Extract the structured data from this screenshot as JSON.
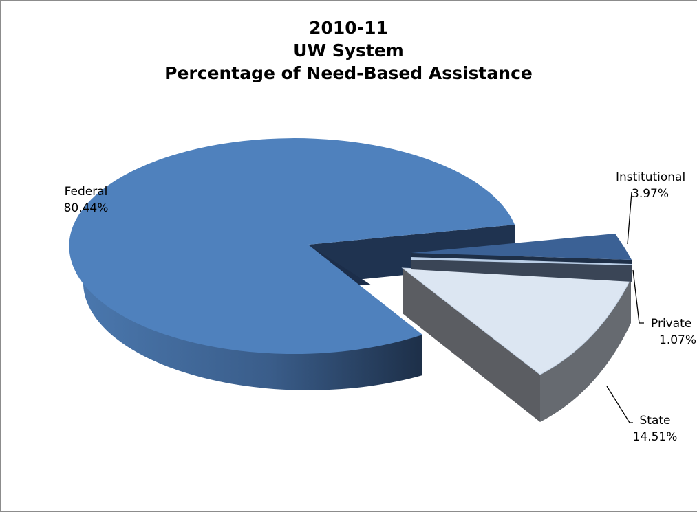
{
  "chart_data": {
    "type": "pie",
    "title": [
      "2010-11",
      "UW System",
      "Percentage of Need-Based Assistance"
    ],
    "slices": [
      {
        "label": "Federal",
        "value": 80.44,
        "display": "80.44%",
        "color": "#4f81bd",
        "exploded": false
      },
      {
        "label": "Institutional",
        "value": 3.97,
        "display": "3.97%",
        "color": "#3b6195",
        "exploded": true
      },
      {
        "label": "Private",
        "value": 1.07,
        "display": "1.07%",
        "color": "#b9cde5",
        "exploded": true
      },
      {
        "label": "State",
        "value": 14.51,
        "display": "14.51%",
        "color": "#dce6f2",
        "exploded": true
      }
    ],
    "style": "3d-exploded-pie",
    "legend": "none"
  }
}
